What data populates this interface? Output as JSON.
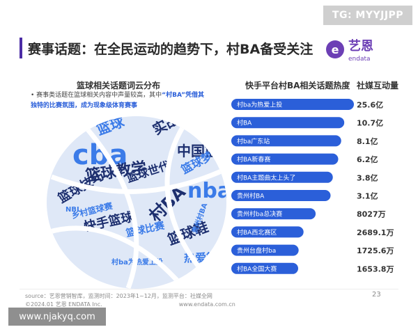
{
  "watermark_top": "TG: MYYJJPP",
  "watermark_bottom": "www.njakyq.com",
  "header": {
    "title": "赛事话题：在全民运动的趋势下，村BA备受关注",
    "logo_cn": "艺恩",
    "logo_en": "endata",
    "logo_mark": "e",
    "accent_color": "#4b2ca5"
  },
  "wordcloud": {
    "title": "篮球相关话题词云分布",
    "note_pre": "• 赛事类话题在篮球相关内容中声量较高，其中",
    "note_hl": "“村BA”凭借其独特的比赛氛围，成为现象级体育赛事",
    "words": [
      {
        "t": "篮球",
        "c": "#3b7be8"
      },
      {
        "t": "实战篮球",
        "c": "#1d2f6f"
      },
      {
        "t": "cba",
        "c": "#3b7be8"
      },
      {
        "t": "篮球教学",
        "c": "#1d2f6f"
      },
      {
        "t": "中国篮球",
        "c": "#1d2f6f"
      },
      {
        "t": "篮球梦",
        "c": "#3b7be8"
      },
      {
        "t": "篮球世代",
        "c": "#1d2f6f"
      },
      {
        "t": "篮球技巧",
        "c": "#1d2f6f"
      },
      {
        "t": "乡村篮球赛",
        "c": "#3b7be8"
      },
      {
        "t": "nba",
        "c": "#3b7be8"
      },
      {
        "t": "快手篮球",
        "c": "#1d2f6f"
      },
      {
        "t": "村BA",
        "c": "#1d2f6f"
      },
      {
        "t": "篮球比赛",
        "c": "#3b7be8"
      },
      {
        "t": "篮球鞋",
        "c": "#1d2f6f"
      },
      {
        "t": "热爱篮球",
        "c": "#3b7be8"
      },
      {
        "t": "贵州村BA",
        "c": "#3b7be8"
      },
      {
        "t": "村ba为热爱上投",
        "c": "#3b7be8"
      },
      {
        "t": "NBL",
        "c": "#3b7be8"
      }
    ]
  },
  "chart_data": {
    "type": "bar",
    "orientation": "horizontal",
    "title": "快手平台村BA相关话题热度",
    "value_header": "社媒互动量",
    "categories": [
      "村ba为热爱上投",
      "村BA",
      "村ba广东站",
      "村BA新春赛",
      "村BA主题曲太上头了",
      "贵州村BA",
      "贵州村ba总决赛",
      "村BA西北赛区",
      "贵州台盘村ba",
      "村BA全国大赛"
    ],
    "values": [
      256000,
      107000,
      81000,
      62000,
      38000,
      31000,
      8027,
      2689.1,
      1725.6,
      1653.8
    ],
    "unit": "万",
    "labels": [
      "25.6亿",
      "10.7亿",
      "8.1亿",
      "6.2亿",
      "3.8亿",
      "3.1亿",
      "8027万",
      "2689.1万",
      "1725.6万",
      "1653.8万"
    ],
    "bar_color": "#2b5fd9"
  },
  "footer": {
    "source": "source：艺恩营销智库，监测时间：2023年1~12月，监测平台：社媒全网",
    "copyright": "©2024.01 艺恩 ENDATA Inc.",
    "site": "www.endata.com.cn",
    "page": "23"
  }
}
